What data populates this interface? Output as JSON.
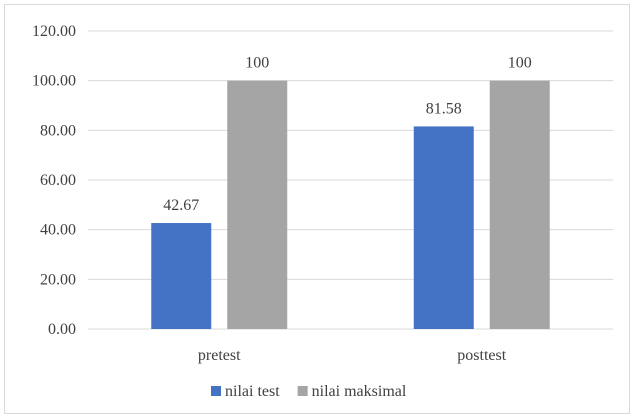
{
  "chart_data": {
    "type": "bar",
    "title": "",
    "xlabel": "",
    "ylabel": "",
    "categories": [
      "pretest",
      "posttest"
    ],
    "series": [
      {
        "name": "nilai test",
        "values": [
          42.67,
          81.58
        ],
        "labels": [
          "42.67",
          "81.58"
        ],
        "color": "#4472c4"
      },
      {
        "name": "nilai maksimal",
        "values": [
          100,
          100
        ],
        "labels": [
          "100",
          "100"
        ],
        "color": "#a5a5a5"
      }
    ],
    "ylim": [
      0,
      120
    ],
    "yticks": [
      0,
      20,
      40,
      60,
      80,
      100,
      120
    ],
    "ytick_labels": [
      "0.00",
      "20.00",
      "40.00",
      "60.00",
      "80.00",
      "100.00",
      "120.00"
    ],
    "grid": true,
    "legend": "bottom-center"
  }
}
